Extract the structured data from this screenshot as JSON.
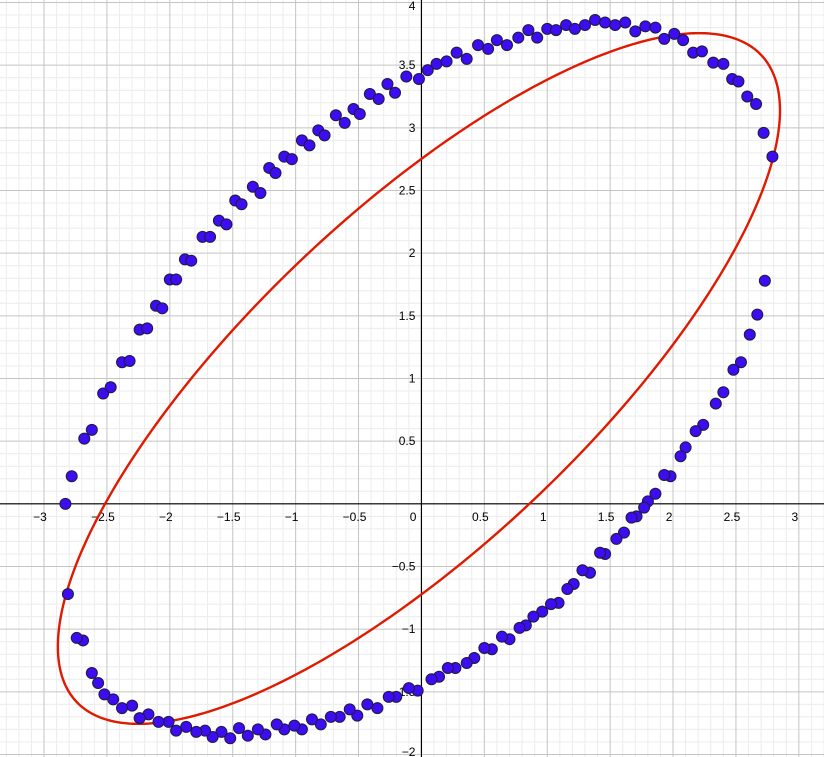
{
  "chart_data": {
    "type": "scatter",
    "title": "",
    "xlabel": "",
    "ylabel": "",
    "xlim": [
      -3.35,
      3.2
    ],
    "ylim": [
      -2.02,
      4.02
    ],
    "x_ticks": [
      -3,
      -2.5,
      -2,
      -1.5,
      -1,
      -0.5,
      0,
      0.5,
      1,
      1.5,
      2,
      2.5,
      3
    ],
    "y_ticks": [
      -2,
      -1.5,
      -1,
      -0.5,
      0.5,
      1,
      1.5,
      2,
      2.5,
      3,
      3.5,
      4
    ],
    "grid": true,
    "legend": "none",
    "colors": {
      "points": "#3d0cf0",
      "curve": "#e01a00"
    },
    "curve": {
      "kind": "ellipse",
      "center": [
        -0.02,
        1.0
      ],
      "semi_axes": [
        3.75,
        1.33
      ],
      "rotation_deg": 43.5
    },
    "series": [
      {
        "points": [
          [
            -2.83,
            0.0
          ],
          [
            -2.78,
            0.22
          ],
          [
            -2.68,
            0.52
          ],
          [
            -2.62,
            0.59
          ],
          [
            -2.53,
            0.88
          ],
          [
            -2.47,
            0.93
          ],
          [
            -2.38,
            1.13
          ],
          [
            -2.32,
            1.14
          ],
          [
            -2.24,
            1.39
          ],
          [
            -2.18,
            1.4
          ],
          [
            -2.11,
            1.58
          ],
          [
            -2.06,
            1.56
          ],
          [
            -2.0,
            1.79
          ],
          [
            -1.95,
            1.79
          ],
          [
            -1.88,
            1.95
          ],
          [
            -1.83,
            1.94
          ],
          [
            -1.74,
            2.13
          ],
          [
            -1.68,
            2.13
          ],
          [
            -1.61,
            2.26
          ],
          [
            -1.55,
            2.23
          ],
          [
            -1.48,
            2.42
          ],
          [
            -1.43,
            2.39
          ],
          [
            -1.34,
            2.53
          ],
          [
            -1.28,
            2.48
          ],
          [
            -1.21,
            2.68
          ],
          [
            -1.16,
            2.64
          ],
          [
            -1.09,
            2.77
          ],
          [
            -1.03,
            2.75
          ],
          [
            -0.95,
            2.9
          ],
          [
            -0.89,
            2.86
          ],
          [
            -0.82,
            2.98
          ],
          [
            -0.77,
            2.94
          ],
          [
            -0.68,
            3.1
          ],
          [
            -0.61,
            3.04
          ],
          [
            -0.54,
            3.15
          ],
          [
            -0.49,
            3.11
          ],
          [
            -0.41,
            3.27
          ],
          [
            -0.34,
            3.23
          ],
          [
            -0.27,
            3.35
          ],
          [
            -0.21,
            3.28
          ],
          [
            -0.12,
            3.41
          ],
          [
            -0.02,
            3.39
          ],
          [
            0.05,
            3.46
          ],
          [
            0.12,
            3.51
          ],
          [
            0.2,
            3.53
          ],
          [
            0.28,
            3.6
          ],
          [
            0.36,
            3.55
          ],
          [
            0.45,
            3.66
          ],
          [
            0.53,
            3.63
          ],
          [
            0.6,
            3.7
          ],
          [
            0.68,
            3.66
          ],
          [
            0.77,
            3.72
          ],
          [
            0.85,
            3.78
          ],
          [
            0.92,
            3.72
          ],
          [
            1.0,
            3.79
          ],
          [
            1.07,
            3.78
          ],
          [
            1.15,
            3.82
          ],
          [
            1.22,
            3.79
          ],
          [
            1.3,
            3.82
          ],
          [
            1.38,
            3.86
          ],
          [
            1.46,
            3.84
          ],
          [
            1.54,
            3.82
          ],
          [
            1.62,
            3.84
          ],
          [
            1.7,
            3.77
          ],
          [
            1.78,
            3.81
          ],
          [
            1.86,
            3.8
          ],
          [
            1.93,
            3.71
          ],
          [
            2.01,
            3.75
          ],
          [
            2.08,
            3.7
          ],
          [
            2.16,
            3.6
          ],
          [
            2.23,
            3.61
          ],
          [
            2.32,
            3.52
          ],
          [
            2.4,
            3.51
          ],
          [
            2.47,
            3.39
          ],
          [
            2.52,
            3.37
          ],
          [
            2.59,
            3.25
          ],
          [
            2.66,
            3.19
          ],
          [
            2.72,
            2.96
          ],
          [
            2.79,
            2.77
          ],
          [
            2.73,
            1.78
          ],
          [
            2.67,
            1.51
          ],
          [
            2.61,
            1.35
          ],
          [
            2.54,
            1.13
          ],
          [
            2.48,
            1.07
          ],
          [
            2.4,
            0.89
          ],
          [
            2.34,
            0.8
          ],
          [
            2.24,
            0.63
          ],
          [
            2.18,
            0.58
          ],
          [
            2.1,
            0.45
          ],
          [
            2.06,
            0.38
          ],
          [
            1.98,
            0.22
          ],
          [
            1.93,
            0.23
          ],
          [
            1.86,
            0.08
          ],
          [
            1.8,
            0.02
          ],
          [
            1.77,
            -0.03
          ],
          [
            1.71,
            -0.1
          ],
          [
            1.67,
            -0.11
          ],
          [
            1.61,
            -0.23
          ],
          [
            1.55,
            -0.28
          ],
          [
            1.46,
            -0.4
          ],
          [
            1.42,
            -0.39
          ],
          [
            1.34,
            -0.55
          ],
          [
            1.28,
            -0.53
          ],
          [
            1.21,
            -0.64
          ],
          [
            1.16,
            -0.68
          ],
          [
            1.09,
            -0.79
          ],
          [
            1.03,
            -0.8
          ],
          [
            0.96,
            -0.86
          ],
          [
            0.89,
            -0.9
          ],
          [
            0.83,
            -0.97
          ],
          [
            0.78,
            -0.99
          ],
          [
            0.7,
            -1.08
          ],
          [
            0.64,
            -1.06
          ],
          [
            0.56,
            -1.16
          ],
          [
            0.5,
            -1.15
          ],
          [
            0.42,
            -1.23
          ],
          [
            0.36,
            -1.27
          ],
          [
            0.27,
            -1.31
          ],
          [
            0.21,
            -1.31
          ],
          [
            0.14,
            -1.38
          ],
          [
            0.08,
            -1.4
          ],
          [
            -0.03,
            -1.49
          ],
          [
            -0.1,
            -1.47
          ],
          [
            -0.2,
            -1.54
          ],
          [
            -0.26,
            -1.54
          ],
          [
            -0.35,
            -1.63
          ],
          [
            -0.43,
            -1.6
          ],
          [
            -0.51,
            -1.69
          ],
          [
            -0.57,
            -1.64
          ],
          [
            -0.65,
            -1.7
          ],
          [
            -0.72,
            -1.7
          ],
          [
            -0.8,
            -1.76
          ],
          [
            -0.87,
            -1.72
          ],
          [
            -0.95,
            -1.8
          ],
          [
            -1.01,
            -1.77
          ],
          [
            -1.09,
            -1.8
          ],
          [
            -1.15,
            -1.76
          ],
          [
            -1.24,
            -1.84
          ],
          [
            -1.3,
            -1.8
          ],
          [
            -1.38,
            -1.85
          ],
          [
            -1.45,
            -1.79
          ],
          [
            -1.52,
            -1.87
          ],
          [
            -1.59,
            -1.82
          ],
          [
            -1.66,
            -1.86
          ],
          [
            -1.72,
            -1.81
          ],
          [
            -1.79,
            -1.82
          ],
          [
            -1.87,
            -1.78
          ],
          [
            -1.95,
            -1.81
          ],
          [
            -2.01,
            -1.74
          ],
          [
            -2.09,
            -1.74
          ],
          [
            -2.17,
            -1.68
          ],
          [
            -2.24,
            -1.71
          ],
          [
            -2.3,
            -1.61
          ],
          [
            -2.38,
            -1.63
          ],
          [
            -2.45,
            -1.56
          ],
          [
            -2.52,
            -1.52
          ],
          [
            -2.57,
            -1.43
          ],
          [
            -2.62,
            -1.35
          ],
          [
            -2.69,
            -1.09
          ],
          [
            -2.74,
            -1.07
          ],
          [
            -2.81,
            -0.72
          ]
        ]
      }
    ]
  }
}
